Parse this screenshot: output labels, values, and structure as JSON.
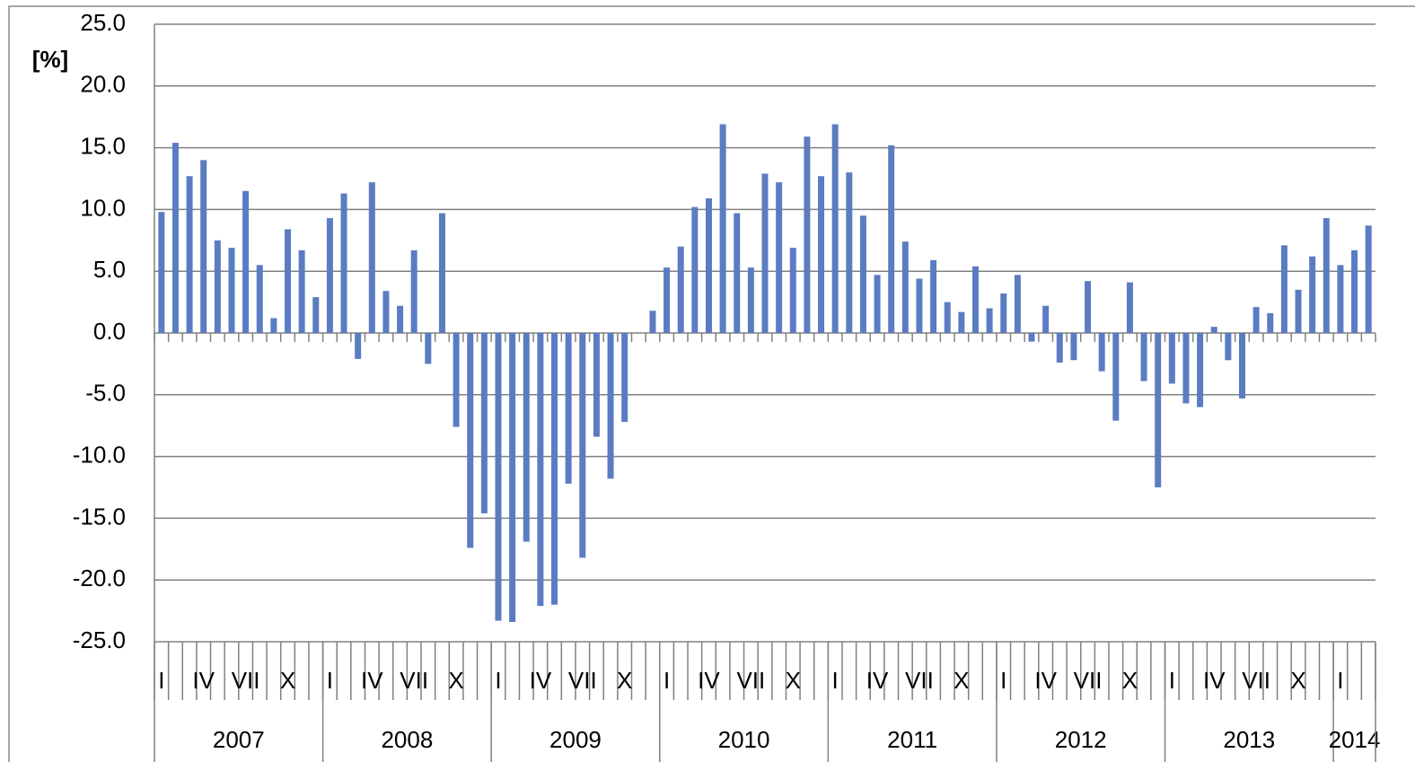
{
  "chart_data": {
    "type": "bar",
    "y_label": "[%]",
    "color": "#5b7cc2",
    "grid": true,
    "ylim": [
      -25,
      25
    ],
    "yticks": [
      {
        "value": 25,
        "label": "25.0"
      },
      {
        "value": 20,
        "label": "20.0"
      },
      {
        "value": 15,
        "label": "15.0"
      },
      {
        "value": 10,
        "label": "10.0"
      },
      {
        "value": 5,
        "label": "5.0"
      },
      {
        "value": 0,
        "label": "0.0"
      },
      {
        "value": -5,
        "label": "-5.0"
      },
      {
        "value": -10,
        "label": "-10.0"
      },
      {
        "value": -15,
        "label": "-15.0"
      },
      {
        "value": -20,
        "label": "-20.0"
      },
      {
        "value": -25,
        "label": "-25.0"
      }
    ],
    "years": [
      "2007",
      "2008",
      "2009",
      "2010",
      "2011",
      "2012",
      "2013",
      "2014"
    ],
    "categories": [
      "I",
      null,
      null,
      "IV",
      null,
      null,
      "VII",
      null,
      null,
      "X",
      null,
      null,
      "I",
      null,
      null,
      "IV",
      null,
      null,
      "VII",
      null,
      null,
      "X",
      null,
      null,
      "I",
      null,
      null,
      "IV",
      null,
      null,
      "VII",
      null,
      null,
      "X",
      null,
      null,
      "I",
      null,
      null,
      "IV",
      null,
      null,
      "VII",
      null,
      null,
      "X",
      null,
      null,
      "I",
      null,
      null,
      "IV",
      null,
      null,
      "VII",
      null,
      null,
      "X",
      null,
      null,
      "I",
      null,
      null,
      "IV",
      null,
      null,
      "VII",
      null,
      null,
      "X",
      null,
      null,
      "I",
      null,
      null,
      "IV",
      null,
      null,
      "VII",
      null,
      null,
      "X",
      null,
      null,
      "I",
      null,
      null
    ],
    "values": [
      9.8,
      15.4,
      12.7,
      14.0,
      7.5,
      6.9,
      11.5,
      5.5,
      1.2,
      8.4,
      6.7,
      2.9,
      9.3,
      11.3,
      -2.1,
      12.2,
      3.4,
      2.2,
      6.7,
      -2.5,
      9.7,
      -7.6,
      -17.4,
      -14.6,
      -23.3,
      -23.4,
      -16.9,
      -22.1,
      -22.0,
      -12.2,
      -18.2,
      -8.4,
      -11.8,
      -7.2,
      0.0,
      1.8,
      5.3,
      7.0,
      10.2,
      10.9,
      16.9,
      9.7,
      5.3,
      12.9,
      12.2,
      6.9,
      15.9,
      12.7,
      16.9,
      13.0,
      9.5,
      4.7,
      15.2,
      7.4,
      4.4,
      5.9,
      2.5,
      1.7,
      5.4,
      2.0,
      3.2,
      4.7,
      -0.7,
      2.2,
      -2.4,
      -2.2,
      4.2,
      -3.1,
      -7.1,
      4.1,
      -3.9,
      -12.5,
      -4.1,
      -5.7,
      -6.0,
      0.5,
      -2.2,
      -5.3,
      2.1,
      1.6,
      7.1,
      3.5,
      6.2,
      9.3,
      5.5,
      6.7,
      8.7
    ]
  }
}
